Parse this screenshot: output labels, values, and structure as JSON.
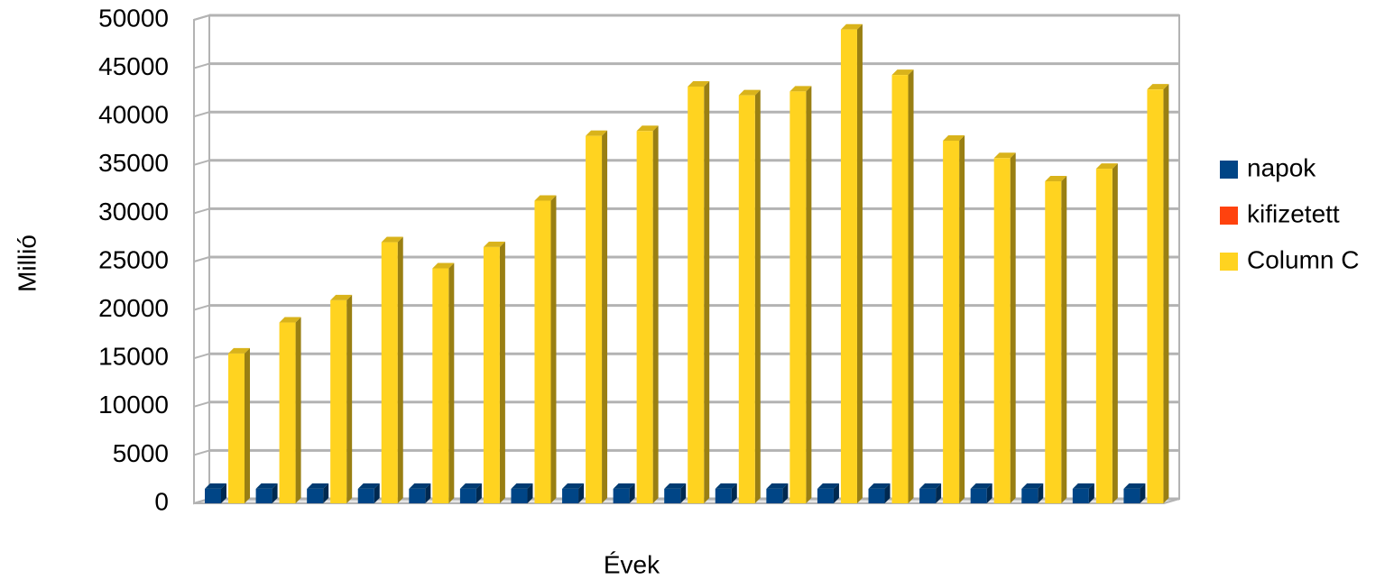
{
  "chart_data": {
    "type": "bar3d",
    "x_label": "Évek",
    "y_label": "Millió",
    "categories": [
      null,
      null,
      null,
      null,
      null,
      null,
      null,
      null,
      null,
      null,
      null,
      null,
      null,
      null,
      null,
      null,
      null,
      null,
      null
    ],
    "series": [
      {
        "name": "napok",
        "color": "#004586",
        "values": [
          1500,
          1500,
          1500,
          1500,
          1500,
          1500,
          1500,
          1500,
          1500,
          1500,
          1500,
          1500,
          1500,
          1500,
          1500,
          1500,
          1500,
          1500,
          1500
        ]
      },
      {
        "name": "kifizetett",
        "color": "#ff420e",
        "values": [
          0,
          0,
          0,
          0,
          0,
          0,
          0,
          0,
          0,
          0,
          0,
          0,
          0,
          0,
          0,
          0,
          0,
          0,
          0
        ]
      },
      {
        "name": "Column C",
        "color": "#ffd320",
        "values": [
          15500,
          18700,
          21000,
          27000,
          24300,
          26500,
          31300,
          38000,
          38500,
          43100,
          42200,
          42600,
          49000,
          44300,
          37500,
          35700,
          33300,
          34600,
          42800
        ]
      }
    ],
    "ylim": [
      0,
      50000
    ],
    "yticks": [
      0,
      5000,
      10000,
      15000,
      20000,
      25000,
      30000,
      35000,
      40000,
      45000,
      50000
    ],
    "grid": true,
    "legend": "right"
  }
}
